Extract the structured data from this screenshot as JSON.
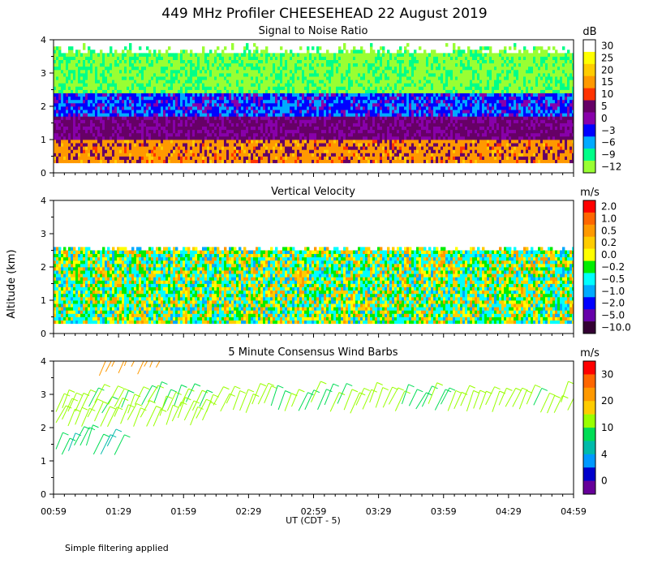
{
  "title": "449 MHz Profiler CHEESEHEAD 22 August 2019",
  "ylabel": "Altitude (km)",
  "xlabel": "UT  (CDT - 5)",
  "footnote": "Simple filtering applied",
  "x_ticks": [
    "00:59",
    "01:29",
    "01:59",
    "02:29",
    "02:59",
    "03:29",
    "03:59",
    "04:29",
    "04:59"
  ],
  "y_ticks": [
    "0",
    "1",
    "2",
    "3",
    "4"
  ],
  "chart_data": [
    {
      "type": "heatmap",
      "title": "Signal to Noise Ratio",
      "ylabel": "Altitude (km)",
      "ylim": [
        0,
        4
      ],
      "xlim": [
        "00:59",
        "04:59"
      ],
      "colorbar": {
        "unit": "dB",
        "labels": [
          "30",
          "25",
          "20",
          "15",
          "10",
          "5",
          "0",
          "−3",
          "−6",
          "−9",
          "−12"
        ],
        "colors": [
          "#ffffff",
          "#ffff00",
          "#ffcc00",
          "#ff9900",
          "#ff3300",
          "#660066",
          "#8800aa",
          "#0000ff",
          "#00aaff",
          "#00ff88",
          "#99ff33"
        ]
      },
      "layers_km": [
        {
          "from": 0.3,
          "to": 0.9,
          "value_db": 15
        },
        {
          "from": 0.9,
          "to": 1.7,
          "value_db": 4
        },
        {
          "from": 1.7,
          "to": 2.4,
          "value_db": -3
        },
        {
          "from": 2.4,
          "to": 3.7,
          "value_db": -11
        }
      ]
    },
    {
      "type": "heatmap",
      "title": "Vertical Velocity",
      "ylabel": "Altitude (km)",
      "ylim": [
        0,
        4
      ],
      "xlim": [
        "00:59",
        "04:59"
      ],
      "colorbar": {
        "unit": "m/s",
        "labels": [
          "2.0",
          "1.0",
          "0.5",
          "0.2",
          "0.0",
          "−0.2",
          "−0.5",
          "−1.0",
          "−2.0",
          "−5.0",
          "−10.0"
        ],
        "colors": [
          "#ff0000",
          "#ff6600",
          "#ff9900",
          "#ffcc00",
          "#ffff00",
          "#00ee00",
          "#00ffff",
          "#00aaff",
          "#0000ff",
          "#6600aa",
          "#330033"
        ]
      },
      "layers_km": [
        {
          "from": 0.3,
          "to": 2.5,
          "value_ms": -0.2
        }
      ]
    },
    {
      "type": "scatter",
      "title": "5 Minute Consensus Wind Barbs",
      "ylabel": "Altitude (km)",
      "ylim": [
        0,
        4
      ],
      "xlim": [
        "00:59",
        "04:59"
      ],
      "colorbar": {
        "unit": "m/s",
        "labels": [
          "30",
          "20",
          "10",
          "4",
          "0"
        ],
        "colors": [
          "#ff0000",
          "#ff6600",
          "#ff9900",
          "#ffcc00",
          "#99ff00",
          "#00dd55",
          "#00bbaa",
          "#0099ff",
          "#0000cc",
          "#660099"
        ]
      },
      "barb_rows": [
        {
          "alt_km": 3.7,
          "from": "01:19",
          "to": "01:49",
          "speed_ms": 20
        },
        {
          "alt_km": 2.6,
          "from": "00:59",
          "to": "04:59",
          "speed_ms": 11
        },
        {
          "alt_km": 2.2,
          "from": "00:59",
          "to": "02:09",
          "speed_ms": 12
        },
        {
          "alt_km": 1.3,
          "from": "00:59",
          "to": "01:29",
          "speed_ms": 8
        }
      ]
    }
  ]
}
